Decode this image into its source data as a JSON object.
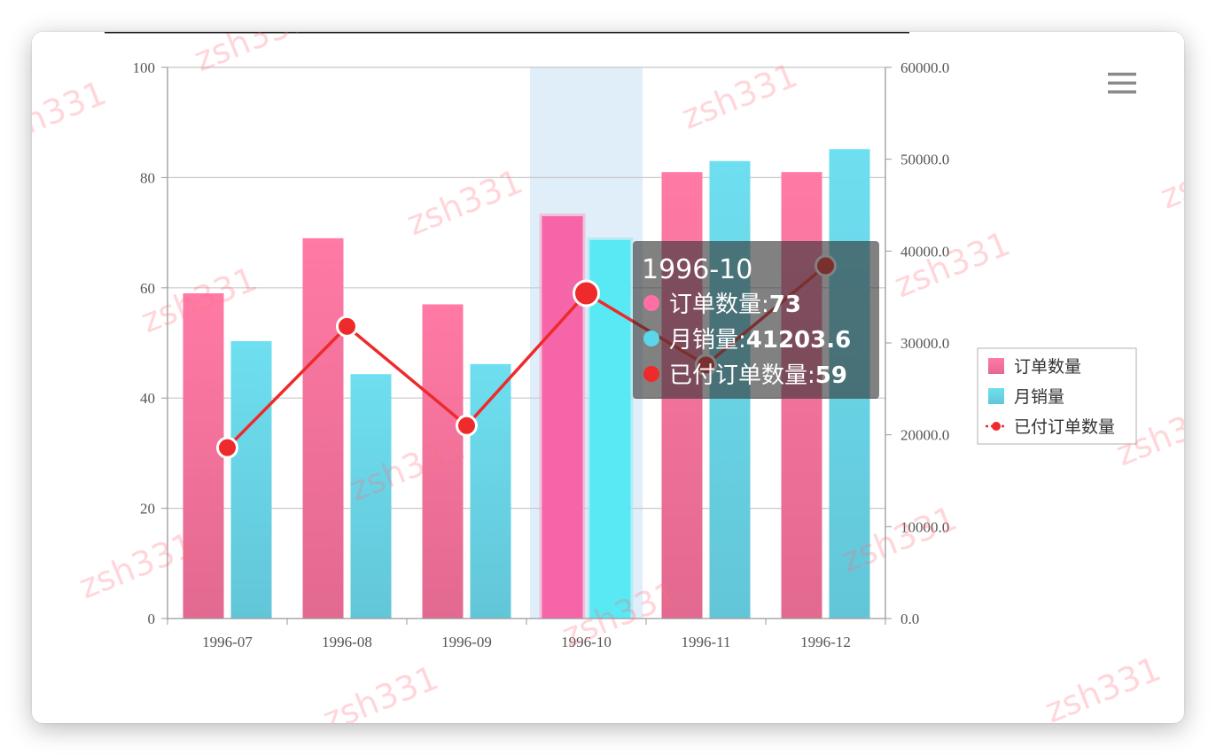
{
  "chart_data": {
    "type": "bar",
    "categories": [
      "1996-07",
      "1996-08",
      "1996-09",
      "1996-10",
      "1996-11",
      "1996-12"
    ],
    "series": [
      {
        "name": "订单数量",
        "kind": "bar",
        "axis": "left",
        "values": [
          59,
          69,
          57,
          73,
          81,
          81
        ],
        "color_top": "#ff7aa5",
        "color_bottom": "#e26990"
      },
      {
        "name": "月销量",
        "kind": "bar",
        "axis": "right",
        "values": [
          30200,
          26600,
          27700,
          41203.6,
          49800,
          51100
        ],
        "color_top": "#6edff0",
        "color_bottom": "#62c6d8"
      },
      {
        "name": "已付订单数量",
        "kind": "line",
        "axis": "left",
        "values": [
          31,
          53,
          35,
          59,
          46,
          64
        ],
        "color": "#ee2a2a"
      }
    ],
    "left_axis": {
      "ylim": [
        0,
        100
      ],
      "ticks": [
        "0",
        "20",
        "40",
        "60",
        "80",
        "100"
      ]
    },
    "right_axis": {
      "ylim": [
        0,
        60000
      ],
      "ticks": [
        "0.0",
        "10000.0",
        "20000.0",
        "30000.0",
        "40000.0",
        "50000.0",
        "60000.0"
      ]
    },
    "grid": true,
    "legend_position": "right",
    "highlighted_category": "1996-10",
    "tooltip": {
      "title": "1996-10",
      "rows": [
        {
          "label": "订单数量",
          "value": "73",
          "color": "#ff6fa3"
        },
        {
          "label": "月销量",
          "value": "41203.6",
          "color": "#5bd7ea"
        },
        {
          "label": "已付订单数量",
          "value": "59",
          "color": "#ee2a2a"
        }
      ]
    }
  },
  "watermark_text": "zsh331",
  "menu_icon": "hamburger-menu-icon"
}
